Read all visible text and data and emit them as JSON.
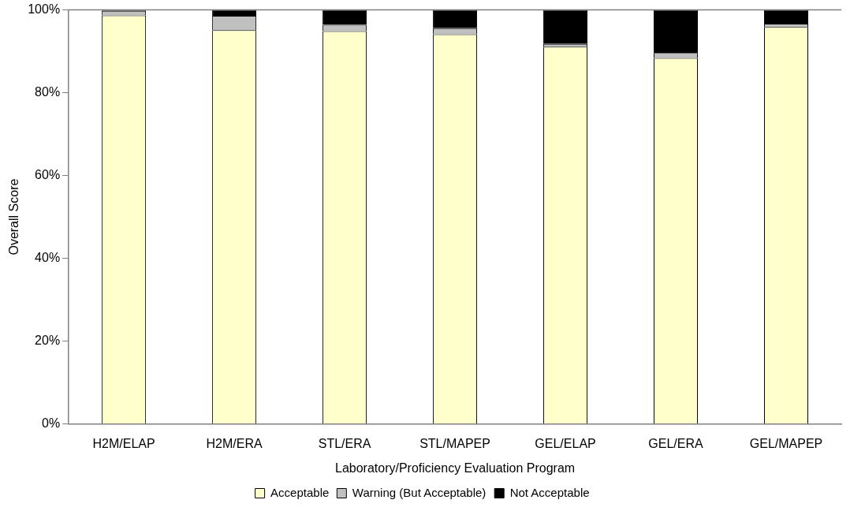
{
  "chart_data": {
    "type": "bar",
    "stacked": true,
    "xlabel": "Laboratory/Proficiency Evaluation Program",
    "ylabel": "Overall Score",
    "categories": [
      "H2M/ELAP",
      "H2M/ERA",
      "STL/ERA",
      "STL/MAPEP",
      "GEL/ELAP",
      "GEL/ERA",
      "GEL/MAPEP"
    ],
    "series": [
      {
        "name": "Acceptable",
        "color": "#ffffcc",
        "values": [
          98.7,
          95.1,
          94.9,
          94.1,
          91.1,
          88.4,
          95.9
        ]
      },
      {
        "name": "Warning (But Acceptable)",
        "color": "#c0c0c0",
        "values": [
          1.1,
          3.5,
          1.5,
          1.5,
          0.7,
          1.2,
          0.8
        ]
      },
      {
        "name": "Not Acceptable",
        "color": "#000000",
        "values": [
          0.2,
          1.4,
          3.6,
          4.4,
          8.2,
          10.4,
          3.3
        ]
      }
    ],
    "ylim": [
      0,
      100
    ],
    "yticks": [
      {
        "value": 0,
        "label": "0%"
      },
      {
        "value": 20,
        "label": "20%"
      },
      {
        "value": 40,
        "label": "40%"
      },
      {
        "value": 60,
        "label": "60%"
      },
      {
        "value": 80,
        "label": "80%"
      },
      {
        "value": 100,
        "label": "100%"
      }
    ],
    "grid": false,
    "legend": "bottom"
  }
}
